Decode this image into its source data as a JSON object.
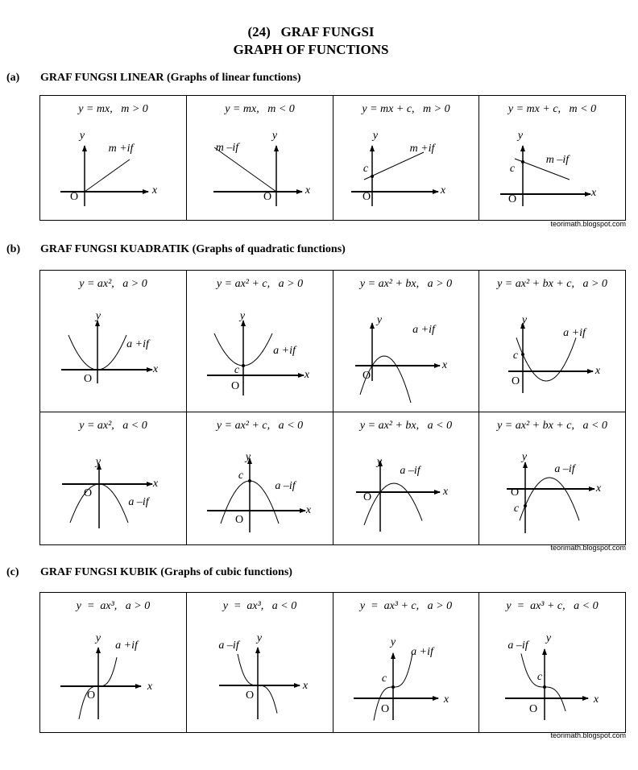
{
  "title": {
    "line1": "(24)   GRAF FUNGSI",
    "line2": "GRAPH OF FUNCTIONS"
  },
  "sections": [
    {
      "label": "(a)",
      "heading": "GRAF FUNGSI LINEAR (Graphs of linear functions)",
      "watermark": "teorimath.blogspot.com",
      "cells": [
        {
          "formula": "y = mx,   m > 0",
          "labels": {
            "y": "y",
            "x": "x",
            "o": "O",
            "sign": "m +if"
          }
        },
        {
          "formula": "y = mx,   m < 0",
          "labels": {
            "y": "y",
            "x": "x",
            "o": "O",
            "sign": "m –if"
          }
        },
        {
          "formula": "y = mx + c,   m > 0",
          "labels": {
            "y": "y",
            "x": "x",
            "o": "O",
            "sign": "m +if",
            "c": "c"
          }
        },
        {
          "formula": "y = mx + c,   m < 0",
          "labels": {
            "y": "y",
            "x": "x",
            "o": "O",
            "sign": "m –if",
            "c": "c"
          }
        }
      ]
    },
    {
      "label": "(b)",
      "heading": "GRAF FUNGSI KUADRATIK (Graphs of quadratic functions)",
      "watermark": "teorimath.blogspot.com",
      "cells": [
        {
          "formula": "y = ax²,   a > 0",
          "labels": {
            "y": "y",
            "x": "x",
            "o": "O",
            "sign": "a +if"
          }
        },
        {
          "formula": "y = ax² + c,   a > 0",
          "labels": {
            "y": "y",
            "x": "x",
            "o": "O",
            "sign": "a +if",
            "c": "c"
          }
        },
        {
          "formula": "y = ax² + bx,   a > 0",
          "labels": {
            "y": "y",
            "x": "x",
            "o": "O",
            "sign": "a +if"
          }
        },
        {
          "formula": "y = ax² + bx + c,   a > 0",
          "labels": {
            "y": "y",
            "x": "x",
            "o": "O",
            "sign": "a +if",
            "c": "c"
          }
        },
        {
          "formula": "y = ax²,   a < 0",
          "labels": {
            "y": "y",
            "x": "x",
            "o": "O",
            "sign": "a –if"
          }
        },
        {
          "formula": "y = ax² + c,   a < 0",
          "labels": {
            "y": "y",
            "x": "x",
            "o": "O",
            "sign": "a –if",
            "c": "c"
          }
        },
        {
          "formula": "y = ax² + bx,   a < 0",
          "labels": {
            "y": "y",
            "x": "x",
            "o": "O",
            "sign": "a –if"
          }
        },
        {
          "formula": "y = ax² + bx + c,   a < 0",
          "labels": {
            "y": "y",
            "x": "x",
            "o": "O",
            "sign": "a –if",
            "c": "c"
          }
        }
      ]
    },
    {
      "label": "(c)",
      "heading": "GRAF FUNGSI KUBIK (Graphs of cubic functions)",
      "watermark": "teorimath.blogspot.com",
      "cells": [
        {
          "formula": "y  =  ax³,   a > 0",
          "labels": {
            "y": "y",
            "x": "x",
            "o": "O",
            "sign": "a +if"
          }
        },
        {
          "formula": "y  =  ax³,   a < 0",
          "labels": {
            "y": "y",
            "x": "x",
            "o": "O",
            "sign": "a –if"
          }
        },
        {
          "formula": "y  =  ax³ + c,   a > 0",
          "labels": {
            "y": "y",
            "x": "x",
            "o": "O",
            "sign": "a +if",
            "c": "c"
          }
        },
        {
          "formula": "y  =  ax³ + c,   a < 0",
          "labels": {
            "y": "y",
            "x": "x",
            "o": "O",
            "sign": "a –if",
            "c": "c"
          }
        }
      ]
    }
  ]
}
